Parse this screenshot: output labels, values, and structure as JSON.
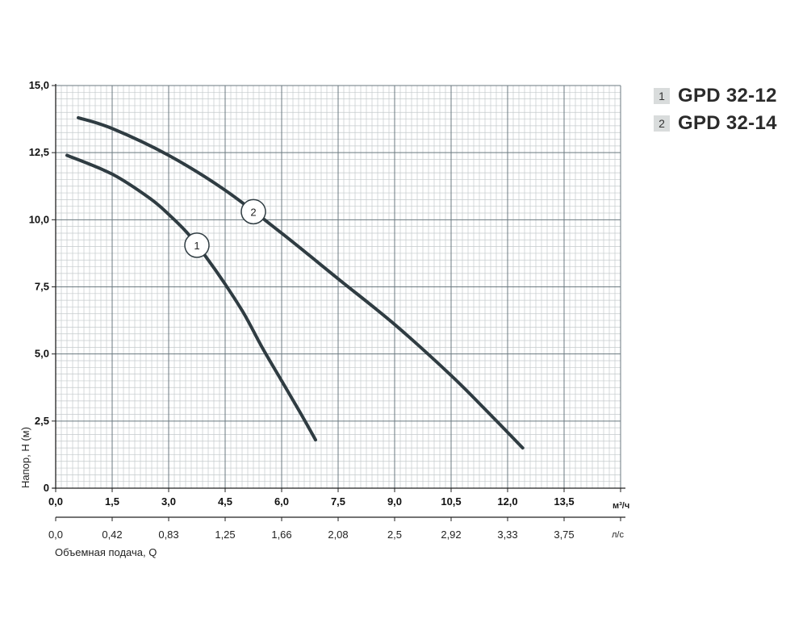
{
  "chart_data": {
    "type": "line",
    "xlabel": "Объемная подача, Q",
    "ylabel": "Напор, H (м)",
    "x_unit": "м³/ч",
    "x2_unit": "л/с",
    "xlim": [
      0,
      15
    ],
    "ylim": [
      0,
      15
    ],
    "x_ticks": [
      "0,0",
      "1,5",
      "3,0",
      "4,5",
      "6,0",
      "7,5",
      "9,0",
      "10,5",
      "12,0",
      "13,5"
    ],
    "x2_ticks": [
      "0,0",
      "0,42",
      "0,83",
      "1,25",
      "1,66",
      "2,08",
      "2,5",
      "2,92",
      "3,33",
      "3,75"
    ],
    "y_ticks": [
      "15,0",
      "12,5",
      "10,0",
      "7,5",
      "5,0",
      "2,5",
      "0"
    ],
    "grid": true,
    "legend_position": "top-right",
    "series": [
      {
        "name": "GPD 32-12",
        "marker": "1",
        "x": [
          0.3,
          1.5,
          2.5,
          3.0,
          3.5,
          4.0,
          4.5,
          5.0,
          5.5,
          6.0,
          6.5,
          6.9
        ],
        "y": [
          12.4,
          11.7,
          10.8,
          10.2,
          9.5,
          8.6,
          7.6,
          6.5,
          5.2,
          4.0,
          2.8,
          1.8
        ]
      },
      {
        "name": "GPD 32-14",
        "marker": "2",
        "x": [
          0.6,
          1.5,
          3.0,
          4.5,
          6.0,
          7.5,
          9.0,
          10.5,
          11.5,
          12.4
        ],
        "y": [
          13.8,
          13.4,
          12.4,
          11.1,
          9.5,
          7.8,
          6.1,
          4.2,
          2.8,
          1.5
        ]
      }
    ],
    "line_color": "#2f3c42",
    "grid_color_major": "#6b7a80",
    "grid_color_minor": "#c4cacc"
  },
  "legend": {
    "items": [
      {
        "number": "1",
        "label": "GPD 32-12"
      },
      {
        "number": "2",
        "label": "GPD 32-14"
      }
    ]
  }
}
